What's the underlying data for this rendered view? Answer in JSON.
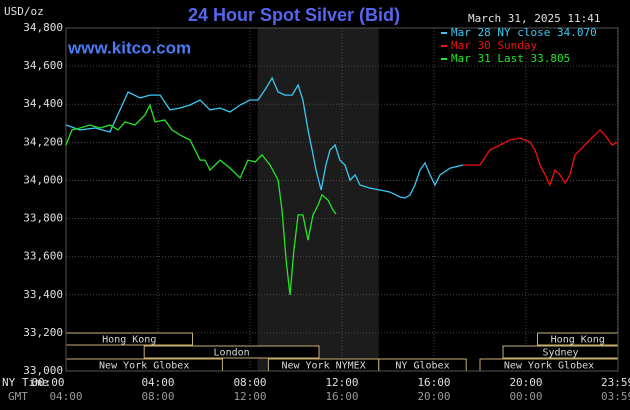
{
  "chart_data": {
    "type": "line",
    "title": "24 Hour Spot Silver (Bid)",
    "timestamp": "March 31, 2025 11:41",
    "website": "www.kitco.com",
    "unit_label": "USD/oz",
    "x_row_labels": [
      "NY Time",
      "GMT"
    ],
    "xlim": [
      0,
      24
    ],
    "ylim": [
      33000,
      34800
    ],
    "yticks": [
      {
        "value": 33000,
        "label": "33,000"
      },
      {
        "value": 33200,
        "label": "33,200"
      },
      {
        "value": 33400,
        "label": "33,400"
      },
      {
        "value": 33600,
        "label": "33,600"
      },
      {
        "value": 33800,
        "label": "33,800"
      },
      {
        "value": 34000,
        "label": "34,000"
      },
      {
        "value": 34200,
        "label": "34,200"
      },
      {
        "value": 34400,
        "label": "34,400"
      },
      {
        "value": 34600,
        "label": "34,600"
      },
      {
        "value": 34800,
        "label": "34,800"
      }
    ],
    "xticks": [
      {
        "value": 0,
        "label": "00:00"
      },
      {
        "value": 4,
        "label": "04:00"
      },
      {
        "value": 8,
        "label": "08:00"
      },
      {
        "value": 12,
        "label": "12:00"
      },
      {
        "value": 16,
        "label": "16:00"
      },
      {
        "value": 20,
        "label": "20:00"
      },
      {
        "value": 23.98,
        "label": "23:59"
      }
    ],
    "gmt_labels": [
      "04:00",
      "08:00",
      "12:00",
      "16:00",
      "20:00",
      "00:00",
      "03:59"
    ],
    "grid": true,
    "highlight_x": [
      8.33,
      13.6
    ],
    "sessions": [
      [
        {
          "name": "Hong Kong",
          "start": 0,
          "end": 5.5
        },
        {
          "name": "Hong Kong",
          "start": 20.5,
          "end": 24
        }
      ],
      [
        {
          "name": "London",
          "start": 3.4,
          "end": 11
        },
        {
          "name": "Sydney",
          "start": 19,
          "end": 24
        }
      ],
      [
        {
          "name": "New York Globex",
          "start": 0,
          "end": 6.8
        },
        {
          "name": "New York NYMEX",
          "start": 8.8,
          "end": 13.6
        },
        {
          "name": "NY Globex",
          "start": 13.6,
          "end": 17.4
        },
        {
          "name": "New York Globex",
          "start": 18,
          "end": 24
        }
      ]
    ],
    "series": [
      {
        "name": "Mar 28 NY close 34.070",
        "color": "#3cc8f4",
        "x": [
          0,
          0.6,
          1.26,
          1.91,
          2.35,
          2.7,
          3.22,
          3.65,
          4.09,
          4.52,
          4.96,
          5.39,
          5.83,
          6.26,
          6.7,
          7.13,
          7.57,
          8.0,
          8.35,
          8.65,
          8.96,
          9.22,
          9.52,
          9.83,
          10.09,
          10.3,
          10.52,
          10.7,
          10.87,
          11.09,
          11.3,
          11.48,
          11.7,
          11.91,
          12.13,
          12.35,
          12.57,
          12.78,
          13.22,
          13.65,
          14.09,
          14.52,
          14.74,
          14.96,
          15.17,
          15.39,
          15.61,
          15.83,
          16.04,
          16.26,
          16.7,
          17.26
        ],
        "values": [
          34291,
          34265,
          34275,
          34254,
          34370,
          34464,
          34433,
          34448,
          34448,
          34370,
          34380,
          34396,
          34422,
          34370,
          34380,
          34359,
          34396,
          34422,
          34422,
          34475,
          34538,
          34464,
          34448,
          34448,
          34501,
          34422,
          34265,
          34160,
          34055,
          33950,
          34081,
          34160,
          34186,
          34107,
          34081,
          34002,
          34029,
          33976,
          33960,
          33950,
          33939,
          33913,
          33908,
          33924,
          33976,
          34055,
          34092,
          34029,
          33976,
          34029,
          34065,
          34081
        ]
      },
      {
        "name": "Mar 30 Sunday",
        "color": "#ee1111",
        "x": [
          17.26,
          18.0,
          18.43,
          18.87,
          19.3,
          19.74,
          20.17,
          20.39,
          20.61,
          20.83,
          21.04,
          21.26,
          21.48,
          21.7,
          21.91,
          22.13,
          22.35,
          22.78,
          23.22,
          23.43,
          23.74,
          24
        ],
        "values": [
          34081,
          34081,
          34160,
          34186,
          34212,
          34223,
          34202,
          34160,
          34081,
          34029,
          33976,
          34055,
          34029,
          33987,
          34029,
          34134,
          34160,
          34212,
          34265,
          34238,
          34186,
          34202
        ]
      },
      {
        "name": "Mar 31 Last 33.805",
        "color": "#22e622",
        "x": [
          0,
          0.26,
          0.61,
          1.04,
          1.48,
          1.91,
          2.26,
          2.57,
          3.0,
          3.43,
          3.65,
          3.87,
          4.3,
          4.61,
          4.96,
          5.39,
          5.83,
          6.04,
          6.26,
          6.7,
          7.13,
          7.57,
          7.91,
          8.22,
          8.52,
          8.87,
          9.22,
          9.39,
          9.57,
          9.74,
          9.91,
          10.09,
          10.3,
          10.52,
          10.74,
          10.96,
          11.13,
          11.39,
          11.61,
          11.74
        ],
        "values": [
          34186,
          34265,
          34275,
          34291,
          34275,
          34291,
          34265,
          34307,
          34291,
          34343,
          34396,
          34307,
          34317,
          34265,
          34238,
          34212,
          34107,
          34107,
          34055,
          34107,
          34065,
          34013,
          34107,
          34097,
          34134,
          34081,
          34002,
          33845,
          33582,
          33399,
          33635,
          33819,
          33819,
          33687,
          33819,
          33871,
          33924,
          33897,
          33845,
          33824
        ]
      }
    ]
  }
}
